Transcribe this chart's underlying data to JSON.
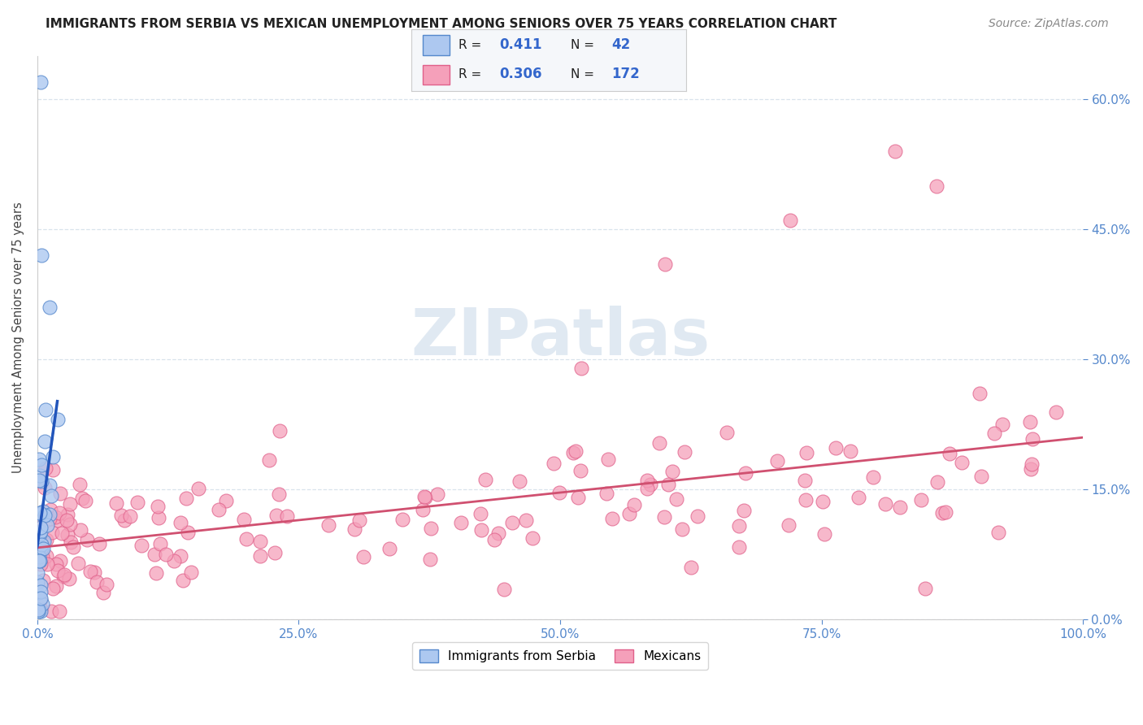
{
  "title": "IMMIGRANTS FROM SERBIA VS MEXICAN UNEMPLOYMENT AMONG SENIORS OVER 75 YEARS CORRELATION CHART",
  "source": "Source: ZipAtlas.com",
  "ylabel": "Unemployment Among Seniors over 75 years",
  "serbia_R": 0.411,
  "serbia_N": 42,
  "mexican_R": 0.306,
  "mexican_N": 172,
  "serbia_color": "#adc8f0",
  "mexican_color": "#f5a0ba",
  "serbia_edge_color": "#5588cc",
  "mexican_edge_color": "#e0608a",
  "serbia_line_color": "#2255bb",
  "mexican_line_color": "#d05070",
  "background_color": "#ffffff",
  "watermark_color": "#c8d8e8",
  "xlim": [
    0,
    1.0
  ],
  "ylim": [
    0,
    0.65
  ],
  "yticks": [
    0,
    0.15,
    0.3,
    0.45,
    0.6
  ],
  "xticks": [
    0,
    0.25,
    0.5,
    0.75,
    1.0
  ],
  "right_tick_color": "#5588cc",
  "x_tick_color": "#5588cc",
  "grid_color": "#d0dde8",
  "title_fontsize": 11,
  "source_fontsize": 10
}
